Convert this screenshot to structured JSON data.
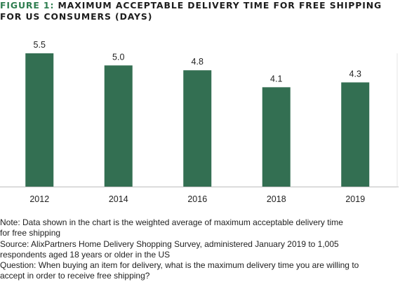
{
  "header": {
    "figure_label": "FIGURE 1:",
    "title_line1": "MAXIMUM ACCEPTABLE DELIVERY TIME FOR FREE SHIPPING",
    "title_line2": "FOR US CONSUMERS (DAYS)"
  },
  "chart_data": {
    "type": "bar",
    "categories": [
      "2012",
      "2014",
      "2016",
      "2018",
      "2019"
    ],
    "values": [
      5.5,
      5.0,
      4.8,
      4.1,
      4.3
    ],
    "value_labels": [
      "5.5",
      "5.0",
      "4.8",
      "4.1",
      "4.3"
    ],
    "title": "MAXIMUM ACCEPTABLE DELIVERY TIME FOR FREE SHIPPING FOR US CONSUMERS (DAYS)",
    "xlabel": "",
    "ylabel": "",
    "ylim": [
      0,
      5.5
    ],
    "grid": false,
    "legend": "none",
    "bar_color": "#336f52",
    "axis_color": "#bdbdbd"
  },
  "notes": {
    "note_line1": "Note: Data shown in the chart is the weighted average of maximum acceptable delivery time",
    "note_line2": "for free shipping",
    "source_line1": "Source: AlixPartners Home Delivery Shopping Survey, administered January 2019 to 1,005",
    "source_line2": "respondents aged 18 years or older in the US",
    "question_line1": "Question: When buying an item for delivery, what is the maximum delivery time you are willing to",
    "question_line2": "accept in order to receive free shipping?"
  }
}
